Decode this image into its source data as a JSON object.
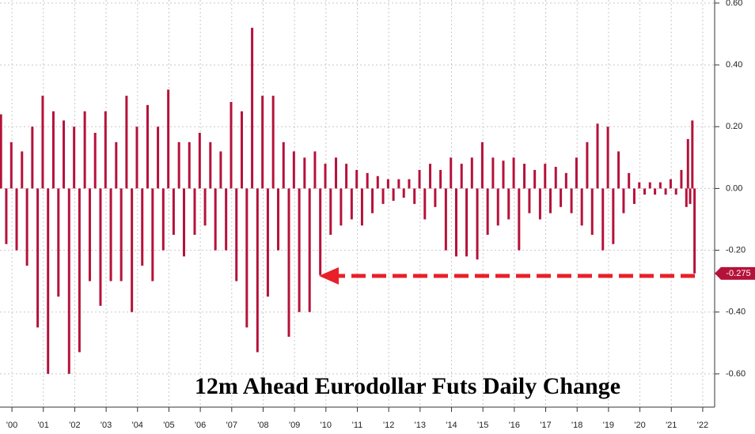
{
  "chart_data": {
    "type": "bar",
    "title": "12m Ahead Eurodollar Futs Daily Change",
    "color": "#b5123a",
    "grid": true,
    "xlim": [
      2000.12,
      2022.88
    ],
    "ylim": [
      -0.7,
      0.61
    ],
    "yticks": [
      {
        "value": 0.6,
        "label": "0.60"
      },
      {
        "value": 0.4,
        "label": "0.40"
      },
      {
        "value": 0.2,
        "label": "0.20"
      },
      {
        "value": 0,
        "label": "0.00"
      },
      {
        "value": -0.2,
        "label": "-0.20"
      },
      {
        "value": -0.4,
        "label": "-0.40"
      },
      {
        "value": -0.6,
        "label": "-0.60"
      }
    ],
    "xticks": [
      {
        "value": 2000.5,
        "label": "'00"
      },
      {
        "value": 2001.5,
        "label": "'01"
      },
      {
        "value": 2002.5,
        "label": "'02"
      },
      {
        "value": 2003.5,
        "label": "'03"
      },
      {
        "value": 2004.5,
        "label": "'04"
      },
      {
        "value": 2005.5,
        "label": "'05"
      },
      {
        "value": 2006.5,
        "label": "'06"
      },
      {
        "value": 2007.5,
        "label": "'07"
      },
      {
        "value": 2008.5,
        "label": "'08"
      },
      {
        "value": 2009.5,
        "label": "'09"
      },
      {
        "value": 2010.5,
        "label": "'10"
      },
      {
        "value": 2011.5,
        "label": "'11"
      },
      {
        "value": 2012.5,
        "label": "'12"
      },
      {
        "value": 2013.5,
        "label": "'13"
      },
      {
        "value": 2014.5,
        "label": "'14"
      },
      {
        "value": 2015.5,
        "label": "'15"
      },
      {
        "value": 2016.5,
        "label": "'16"
      },
      {
        "value": 2017.5,
        "label": "'17"
      },
      {
        "value": 2018.5,
        "label": "'18"
      },
      {
        "value": 2019.5,
        "label": "'19"
      },
      {
        "value": 2020.5,
        "label": "'20"
      },
      {
        "value": 2021.5,
        "label": "'21"
      },
      {
        "value": 2022.5,
        "label": "'22"
      }
    ],
    "last_value": {
      "value": -0.275,
      "label": "-0.275"
    },
    "x": [
      2000.15,
      2000.32,
      2000.48,
      2000.65,
      2000.82,
      2000.98,
      2001.15,
      2001.32,
      2001.48,
      2001.65,
      2001.82,
      2001.98,
      2002.15,
      2002.32,
      2002.48,
      2002.65,
      2002.82,
      2002.98,
      2003.15,
      2003.32,
      2003.48,
      2003.65,
      2003.82,
      2003.98,
      2004.15,
      2004.32,
      2004.48,
      2004.65,
      2004.82,
      2004.98,
      2005.15,
      2005.32,
      2005.48,
      2005.65,
      2005.82,
      2005.98,
      2006.15,
      2006.32,
      2006.48,
      2006.65,
      2006.82,
      2006.98,
      2007.15,
      2007.32,
      2007.48,
      2007.65,
      2007.82,
      2007.98,
      2008.15,
      2008.32,
      2008.48,
      2008.65,
      2008.82,
      2008.98,
      2009.15,
      2009.32,
      2009.48,
      2009.65,
      2009.82,
      2009.98,
      2010.15,
      2010.32,
      2010.48,
      2010.65,
      2010.82,
      2010.98,
      2011.15,
      2011.32,
      2011.48,
      2011.65,
      2011.82,
      2011.98,
      2012.15,
      2012.32,
      2012.48,
      2012.65,
      2012.82,
      2012.98,
      2013.15,
      2013.32,
      2013.48,
      2013.65,
      2013.82,
      2013.98,
      2014.15,
      2014.32,
      2014.48,
      2014.65,
      2014.82,
      2014.98,
      2015.15,
      2015.32,
      2015.48,
      2015.65,
      2015.82,
      2015.98,
      2016.15,
      2016.32,
      2016.48,
      2016.65,
      2016.82,
      2016.98,
      2017.15,
      2017.32,
      2017.48,
      2017.65,
      2017.82,
      2017.98,
      2018.15,
      2018.32,
      2018.48,
      2018.65,
      2018.82,
      2018.98,
      2019.15,
      2019.32,
      2019.48,
      2019.65,
      2019.82,
      2019.98,
      2020.15,
      2020.32,
      2020.48,
      2020.65,
      2020.82,
      2020.98,
      2021.15,
      2021.32,
      2021.48,
      2021.65,
      2021.82,
      2021.98,
      2022.03,
      2022.1,
      2022.17,
      2022.24
    ],
    "values": [
      0.24,
      -0.18,
      0.15,
      -0.2,
      0.12,
      -0.25,
      0.2,
      -0.45,
      0.3,
      -0.6,
      0.25,
      -0.35,
      0.22,
      -0.6,
      0.2,
      -0.53,
      0.25,
      -0.3,
      0.18,
      -0.38,
      0.25,
      -0.3,
      0.15,
      -0.3,
      0.3,
      -0.4,
      0.2,
      -0.25,
      0.27,
      -0.3,
      0.2,
      -0.2,
      0.32,
      -0.15,
      0.15,
      -0.22,
      0.15,
      -0.15,
      0.18,
      -0.12,
      0.15,
      -0.2,
      0.12,
      -0.2,
      0.28,
      -0.3,
      0.25,
      -0.45,
      0.52,
      -0.53,
      0.3,
      -0.35,
      0.3,
      -0.2,
      0.15,
      -0.48,
      0.12,
      -0.4,
      0.1,
      -0.4,
      0.12,
      -0.28,
      0.08,
      -0.15,
      0.1,
      -0.12,
      0.08,
      -0.1,
      0.06,
      -0.12,
      0.05,
      -0.08,
      0.04,
      -0.05,
      0.03,
      -0.04,
      0.03,
      -0.03,
      0.03,
      -0.05,
      0.06,
      -0.1,
      0.08,
      -0.06,
      0.06,
      -0.2,
      0.1,
      -0.22,
      0.08,
      -0.22,
      0.1,
      -0.23,
      0.15,
      -0.15,
      0.1,
      -0.12,
      0.09,
      -0.1,
      0.1,
      -0.2,
      0.08,
      -0.08,
      0.06,
      -0.1,
      0.08,
      -0.08,
      0.07,
      -0.06,
      0.05,
      -0.08,
      0.1,
      -0.12,
      0.15,
      -0.15,
      0.21,
      -0.2,
      0.2,
      -0.18,
      0.12,
      -0.08,
      0.05,
      -0.05,
      0.02,
      -0.02,
      0.02,
      -0.02,
      0.02,
      -0.02,
      0.03,
      -0.02,
      0.06,
      -0.06,
      0.16,
      -0.05,
      0.22,
      -0.275
    ]
  }
}
